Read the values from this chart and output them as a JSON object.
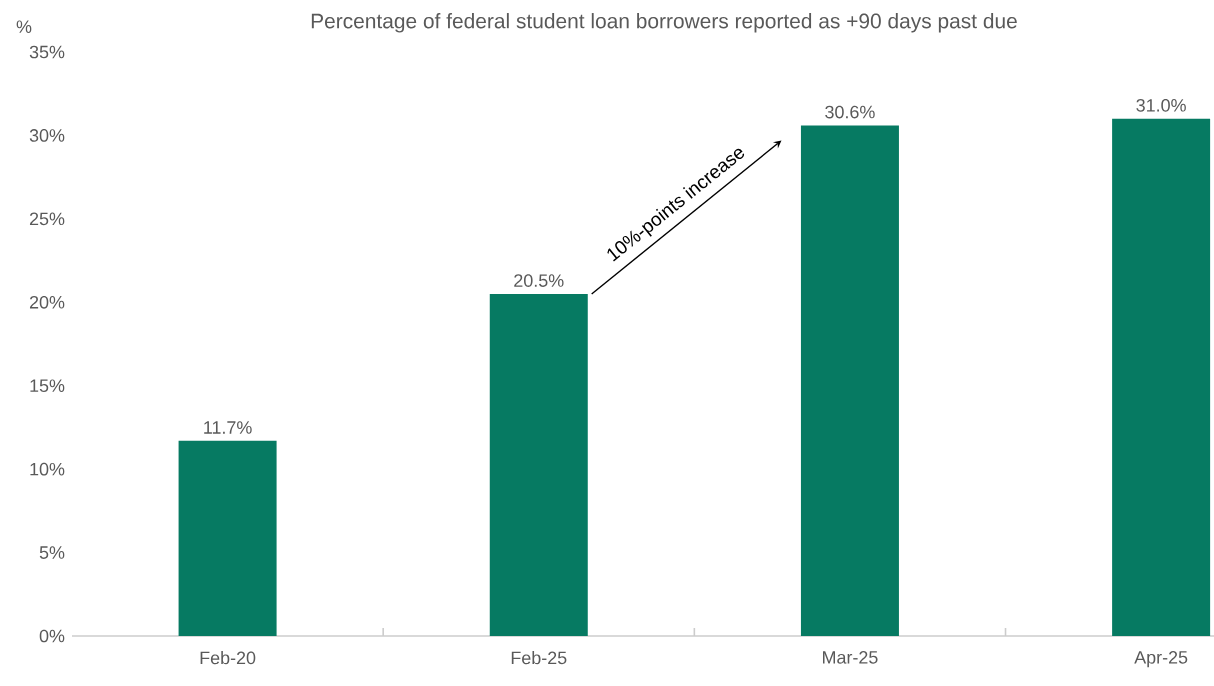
{
  "chart_data": {
    "type": "bar",
    "title": "Percentage of federal student loan borrowers reported as +90 days past due",
    "ylabel": "%",
    "categories": [
      "Feb-20",
      "Feb-25",
      "Mar-25",
      "Apr-25"
    ],
    "values": [
      11.7,
      20.5,
      30.6,
      31.0
    ],
    "value_labels": [
      "11.7%",
      "20.5%",
      "30.6%",
      "31.0%"
    ],
    "color": "#067a62",
    "ylim": [
      0,
      35
    ],
    "yticks": [
      {
        "value": 0,
        "label": "0%"
      },
      {
        "value": 5,
        "label": "5%"
      },
      {
        "value": 10,
        "label": "10%"
      },
      {
        "value": 15,
        "label": "15%"
      },
      {
        "value": 20,
        "label": "20%"
      },
      {
        "value": 25,
        "label": "25%"
      },
      {
        "value": 30,
        "label": "30%"
      },
      {
        "value": 35,
        "label": "35%"
      }
    ],
    "annotations": [
      "10%-points increase"
    ],
    "grid": false
  }
}
